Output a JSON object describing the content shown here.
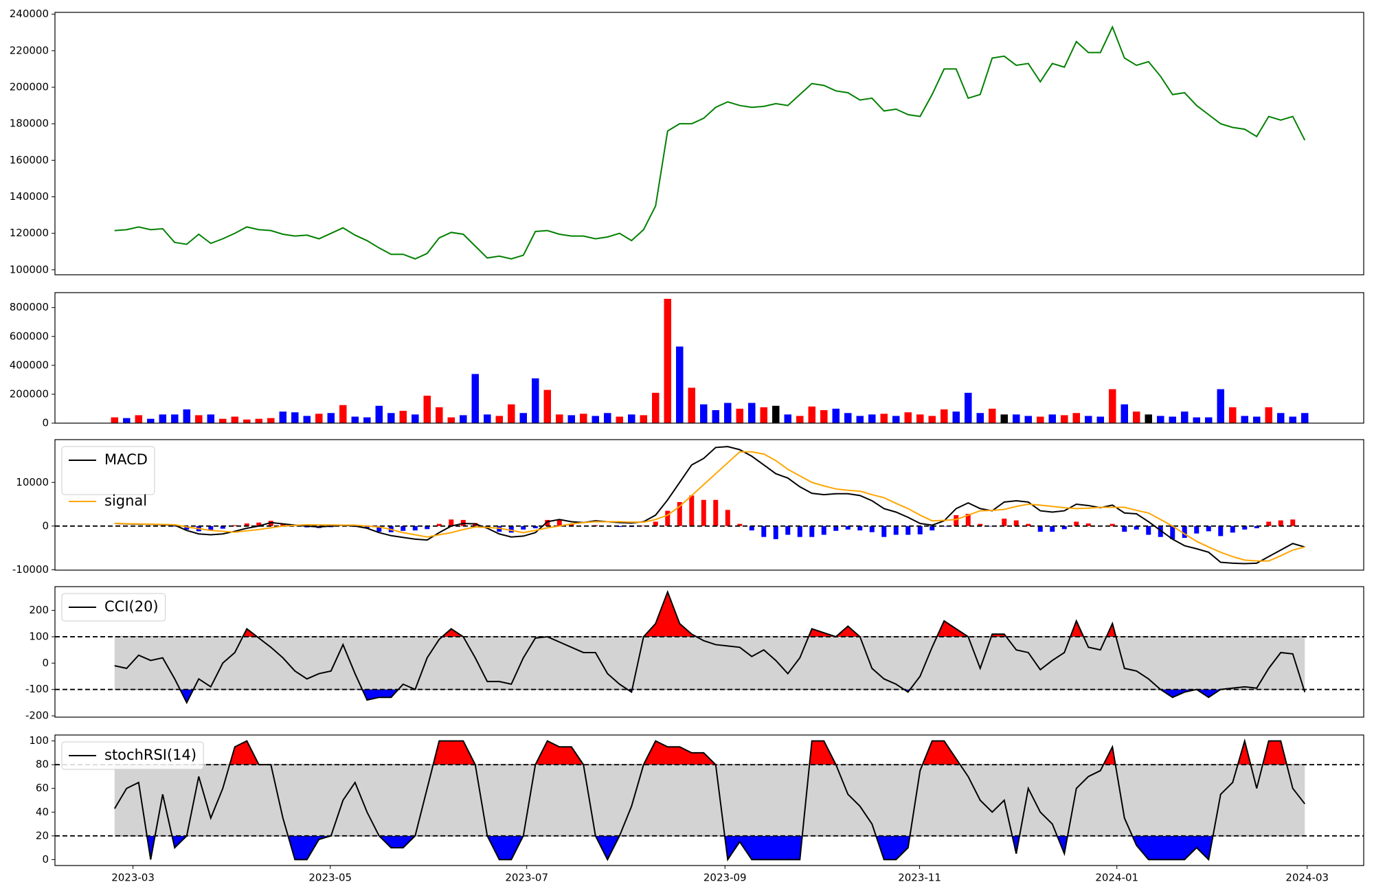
{
  "chart_data": [
    {
      "type": "line",
      "xlim": [
        -4.96,
        103.9
      ],
      "ylim": [
        97300,
        241000
      ],
      "yticks": [
        100000,
        120000,
        140000,
        160000,
        180000,
        200000,
        220000,
        240000
      ],
      "series": [
        {
          "color": "green",
          "values": [
            121500,
            122000,
            123500,
            122000,
            122500,
            115000,
            114000,
            119500,
            114500,
            117000,
            120000,
            123500,
            122000,
            121500,
            119500,
            118500,
            119000,
            117000,
            120000,
            123000,
            119000,
            116000,
            112000,
            108500,
            108500,
            106000,
            109000,
            117500,
            120500,
            119500,
            113000,
            106500,
            107500,
            106000,
            108000,
            121000,
            121500,
            119500,
            118500,
            118500,
            117000,
            118000,
            120000,
            116000,
            122000,
            135000,
            176000,
            180000,
            180000,
            183000,
            189000,
            192000,
            190000,
            189000,
            189500,
            191000,
            190000,
            196000,
            202000,
            201000,
            198000,
            197000,
            193000,
            194000,
            187000,
            188000,
            185000,
            184000,
            196000,
            210000,
            210000,
            194000,
            196000,
            216000,
            217000,
            212000,
            213000,
            203000,
            213000,
            211000,
            225000,
            219000,
            219000,
            233000,
            216000,
            212000,
            214000,
            206000,
            196000,
            197000,
            190000,
            185000,
            180000,
            178000,
            177000,
            173000,
            184000,
            182000,
            184000,
            171000
          ]
        }
      ]
    },
    {
      "type": "bar",
      "xlim": [
        -4.96,
        103.9
      ],
      "ylim": [
        0,
        903000
      ],
      "yticks": [
        0,
        200000,
        400000,
        600000,
        800000
      ],
      "values": [
        40000,
        35000,
        55000,
        30000,
        60000,
        60000,
        95000,
        55000,
        60000,
        30000,
        45000,
        25000,
        30000,
        35000,
        80000,
        75000,
        50000,
        65000,
        70000,
        125000,
        45000,
        40000,
        120000,
        70000,
        85000,
        60000,
        190000,
        110000,
        40000,
        55000,
        340000,
        60000,
        50000,
        130000,
        70000,
        310000,
        230000,
        60000,
        55000,
        65000,
        50000,
        70000,
        45000,
        60000,
        55000,
        210000,
        860000,
        530000,
        245000,
        130000,
        90000,
        140000,
        100000,
        140000,
        110000,
        120000,
        60000,
        50000,
        115000,
        90000,
        100000,
        70000,
        50000,
        60000,
        65000,
        50000,
        75000,
        60000,
        50000,
        95000,
        80000,
        210000,
        70000,
        100000,
        60000,
        60000,
        50000,
        45000,
        60000,
        55000,
        70000,
        50000,
        45000,
        235000,
        130000,
        80000,
        60000,
        50000,
        45000,
        80000,
        40000,
        40000,
        235000,
        110000,
        50000,
        45000,
        110000,
        70000,
        45000,
        70000
      ],
      "colors": [
        "red",
        "blue",
        "red",
        "blue",
        "blue",
        "blue",
        "blue",
        "red",
        "blue",
        "red",
        "red",
        "red",
        "red",
        "red",
        "blue",
        "blue",
        "blue",
        "red",
        "blue",
        "red",
        "blue",
        "blue",
        "blue",
        "blue",
        "red",
        "blue",
        "red",
        "red",
        "red",
        "blue",
        "blue",
        "blue",
        "red",
        "red",
        "blue",
        "blue",
        "red",
        "red",
        "blue",
        "red",
        "blue",
        "blue",
        "red",
        "blue",
        "red",
        "red",
        "red",
        "blue",
        "red",
        "blue",
        "blue",
        "blue",
        "red",
        "blue",
        "red",
        "black",
        "blue",
        "red",
        "red",
        "red",
        "blue",
        "blue",
        "blue",
        "blue",
        "red",
        "blue",
        "red",
        "red",
        "red",
        "red",
        "blue",
        "blue",
        "blue",
        "red",
        "black",
        "blue",
        "blue",
        "red",
        "blue",
        "red",
        "red",
        "blue",
        "blue",
        "red",
        "blue",
        "red",
        "black",
        "blue",
        "blue",
        "blue",
        "blue",
        "blue",
        "blue",
        "red",
        "blue",
        "blue",
        "red",
        "blue",
        "blue",
        "blue"
      ]
    },
    {
      "type": "line",
      "xlim": [
        -4.96,
        103.9
      ],
      "ylim": [
        -10100,
        19800
      ],
      "yticks": [
        -10000,
        0,
        10000
      ],
      "hlines": [
        0
      ],
      "legend": "upper left",
      "bars": {
        "positive_color": "red",
        "negative_color": "blue",
        "values": [
          0,
          -40,
          -30,
          -20,
          -60,
          -100,
          -800,
          -1200,
          -1000,
          -600,
          200,
          600,
          800,
          1200,
          500,
          50,
          -300,
          -450,
          -250,
          0,
          -200,
          -500,
          -1300,
          -1400,
          -1100,
          -1000,
          -700,
          500,
          1500,
          1400,
          700,
          -200,
          -1300,
          -1500,
          -800,
          -500,
          1400,
          1500,
          500,
          0,
          200,
          0,
          -200,
          -200,
          100,
          1000,
          3500,
          5500,
          7000,
          6000,
          6000,
          3700,
          500,
          -1000,
          -2500,
          -3000,
          -2000,
          -2500,
          -2500,
          -2000,
          -1100,
          -800,
          -1000,
          -1400,
          -2500,
          -2000,
          -2000,
          -1900,
          -1000,
          -100,
          2500,
          2800,
          500,
          -100,
          1700,
          1300,
          500,
          -1300,
          -1300,
          -700,
          1000,
          600,
          -100,
          500,
          -1300,
          -800,
          -2000,
          -2500,
          -3000,
          -2700,
          -1700,
          -1200,
          -2300,
          -1500,
          -800,
          -500,
          1000,
          1300,
          1500,
          0
        ]
      },
      "series": [
        {
          "name": "MACD",
          "color": "black",
          "values": [
            600,
            500,
            450,
            400,
            300,
            200,
            -1000,
            -1800,
            -2000,
            -1800,
            -1200,
            -500,
            0,
            800,
            500,
            200,
            0,
            -200,
            0,
            200,
            0,
            -500,
            -1500,
            -2200,
            -2600,
            -3000,
            -3200,
            -1500,
            0,
            600,
            500,
            -500,
            -1800,
            -2500,
            -2300,
            -1500,
            1000,
            1500,
            1000,
            800,
            1200,
            1000,
            800,
            700,
            1000,
            2500,
            6000,
            10000,
            14000,
            15500,
            18000,
            18200,
            17500,
            16000,
            14000,
            12000,
            11000,
            9000,
            7500,
            7200,
            7400,
            7400,
            7000,
            5800,
            4000,
            3200,
            2000,
            600,
            200,
            1200,
            4000,
            5300,
            4000,
            3500,
            5500,
            5800,
            5500,
            3500,
            3200,
            3500,
            5000,
            4700,
            4200,
            4800,
            3000,
            2800,
            1000,
            -1000,
            -3000,
            -4500,
            -5200,
            -6000,
            -8300,
            -8500,
            -8600,
            -8500,
            -7000,
            -5500,
            -4000,
            -4800
          ]
        },
        {
          "name": "signal",
          "color": "orange",
          "values": [
            600,
            540,
            480,
            420,
            360,
            300,
            -200,
            -600,
            -1000,
            -1200,
            -1400,
            -1100,
            -800,
            -400,
            0,
            150,
            300,
            250,
            250,
            200,
            200,
            0,
            -200,
            -800,
            -1500,
            -2000,
            -2500,
            -2000,
            -1500,
            -800,
            -200,
            -300,
            -500,
            -1000,
            -1500,
            -1000,
            -400,
            0,
            500,
            800,
            1000,
            1000,
            1000,
            900,
            900,
            1500,
            2500,
            4500,
            7000,
            9500,
            12000,
            14500,
            17000,
            17000,
            16500,
            15000,
            13000,
            11500,
            10000,
            9200,
            8500,
            8200,
            8000,
            7200,
            6500,
            5200,
            4000,
            2500,
            1200,
            1300,
            1500,
            2500,
            3500,
            3600,
            3800,
            4500,
            5000,
            4800,
            4500,
            4200,
            4000,
            4100,
            4300,
            4300,
            4300,
            3600,
            3000,
            1500,
            0,
            -1800,
            -3500,
            -4800,
            -6000,
            -7000,
            -7800,
            -8000,
            -8000,
            -6800,
            -5500,
            -4800
          ]
        }
      ]
    },
    {
      "type": "line",
      "xlim": [
        -4.96,
        103.9
      ],
      "ylim": [
        -205,
        290
      ],
      "yticks": [
        -200,
        -100,
        0,
        100,
        200
      ],
      "hlines": [
        -100,
        100
      ],
      "band": [
        -100,
        100
      ],
      "band_color": "lightgray",
      "fill_above_color": "red",
      "fill_below_color": "blue",
      "legend": "upper left",
      "series": [
        {
          "name": "CCI(20)",
          "color": "black",
          "values": [
            -10,
            -20,
            30,
            10,
            20,
            -60,
            -150,
            -60,
            -90,
            0,
            40,
            130,
            95,
            60,
            20,
            -30,
            -60,
            -40,
            -30,
            70,
            -40,
            -140,
            -130,
            -130,
            -80,
            -100,
            20,
            90,
            130,
            100,
            20,
            -70,
            -70,
            -80,
            20,
            95,
            100,
            80,
            60,
            40,
            40,
            -40,
            -80,
            -110,
            100,
            150,
            270,
            150,
            110,
            85,
            70,
            65,
            60,
            25,
            50,
            10,
            -40,
            20,
            130,
            115,
            100,
            140,
            100,
            -20,
            -60,
            -80,
            -110,
            -50,
            60,
            160,
            130,
            100,
            -20,
            110,
            110,
            50,
            40,
            -25,
            10,
            40,
            160,
            60,
            50,
            150,
            -20,
            -30,
            -60,
            -100,
            -130,
            -110,
            -100,
            -130,
            -100,
            -95,
            -90,
            -95,
            -20,
            40,
            35,
            -110
          ]
        }
      ]
    },
    {
      "type": "line",
      "xlim": [
        -4.96,
        103.9
      ],
      "ylim": [
        -5,
        105
      ],
      "yticks": [
        0,
        20,
        40,
        60,
        80,
        100
      ],
      "hlines": [
        20,
        80
      ],
      "band": [
        20,
        80
      ],
      "band_color": "lightgray",
      "fill_above_color": "red",
      "fill_below_color": "blue",
      "legend": "upper left",
      "xticks": [
        {
          "value": 1.53,
          "label": "2023-03"
        },
        {
          "value": 17.94,
          "label": "2023-05"
        },
        {
          "value": 34.28,
          "label": "2023-07"
        },
        {
          "value": 50.77,
          "label": "2023-09"
        },
        {
          "value": 66.96,
          "label": "2023-11"
        },
        {
          "value": 83.37,
          "label": "2024-01"
        },
        {
          "value": 99.2,
          "label": "2024-03"
        }
      ],
      "series": [
        {
          "name": "stochRSI(14)",
          "color": "black",
          "values": [
            43,
            60,
            65,
            0,
            55,
            10,
            20,
            70,
            35,
            60,
            95,
            100,
            80,
            80,
            35,
            0,
            0,
            17,
            20,
            50,
            65,
            40,
            20,
            10,
            10,
            20,
            60,
            100,
            100,
            100,
            80,
            20,
            0,
            0,
            20,
            80,
            100,
            95,
            95,
            80,
            20,
            0,
            20,
            45,
            80,
            100,
            95,
            95,
            90,
            90,
            80,
            0,
            15,
            0,
            0,
            0,
            0,
            0,
            100,
            100,
            80,
            55,
            45,
            30,
            0,
            0,
            10,
            75,
            100,
            100,
            85,
            70,
            50,
            40,
            50,
            5,
            60,
            40,
            30,
            5,
            60,
            70,
            75,
            95,
            35,
            12,
            0,
            0,
            0,
            0,
            10,
            0,
            55,
            65,
            100,
            60,
            100,
            100,
            60,
            47
          ]
        }
      ]
    }
  ]
}
